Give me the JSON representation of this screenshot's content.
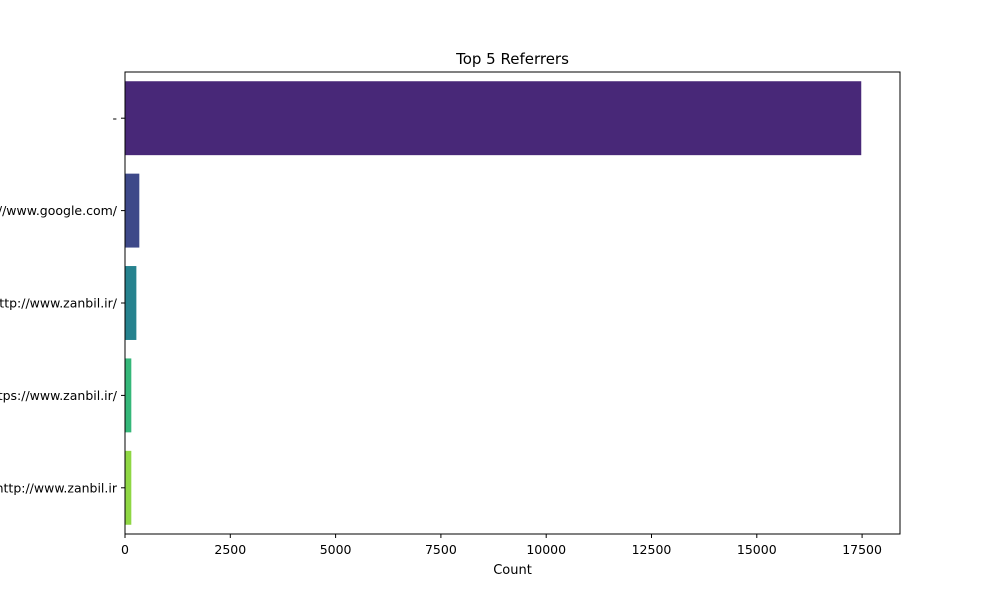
{
  "chart_data": {
    "type": "bar",
    "orientation": "horizontal",
    "title": "Top 5 Referrers",
    "xlabel": "Count",
    "ylabel": "",
    "categories": [
      "-",
      "https://www.google.com/",
      "http://www.zanbil.ir/",
      "https://www.zanbil.ir/",
      "http://www.zanbil.ir"
    ],
    "values": [
      17480,
      340,
      270,
      150,
      150
    ],
    "colors": [
      "#482878",
      "#3e4989",
      "#26828e",
      "#35b779",
      "#8fd744"
    ],
    "xlim": [
      0,
      18400
    ],
    "xticks": [
      0,
      2500,
      5000,
      7500,
      10000,
      12500,
      15000,
      17500
    ],
    "grid": false,
    "legend": "none"
  }
}
